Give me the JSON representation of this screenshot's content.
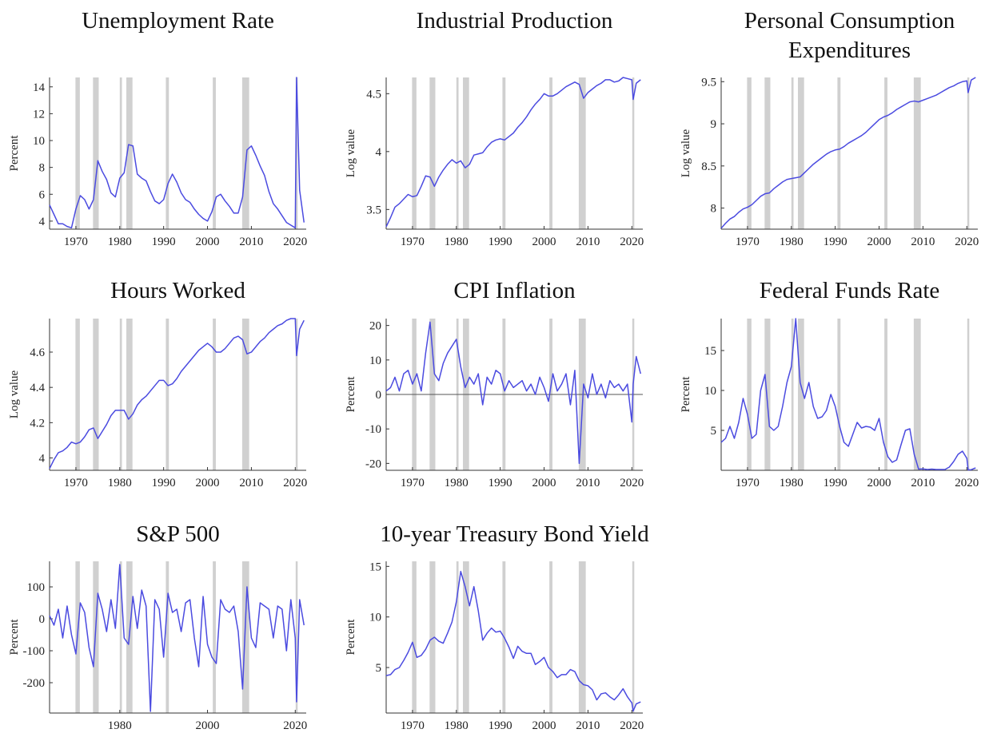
{
  "recessions": [
    [
      1969.9,
      1970.9
    ],
    [
      1973.9,
      1975.2
    ],
    [
      1980.0,
      1980.5
    ],
    [
      1981.5,
      1982.9
    ],
    [
      1990.5,
      1991.2
    ],
    [
      2001.2,
      2001.9
    ],
    [
      2007.9,
      2009.5
    ],
    [
      2020.1,
      2020.3
    ]
  ],
  "chart_data": [
    {
      "type": "line",
      "title": "Unemployment Rate",
      "y_label": "Percent",
      "color": "#4b4be0",
      "x": [
        1964,
        1965,
        1966,
        1967,
        1968,
        1969,
        1970,
        1971,
        1972,
        1973,
        1974,
        1975,
        1976,
        1977,
        1978,
        1979,
        1980,
        1981,
        1982,
        1983,
        1984,
        1985,
        1986,
        1987,
        1988,
        1989,
        1990,
        1991,
        1992,
        1993,
        1994,
        1995,
        1996,
        1997,
        1998,
        1999,
        2000,
        2001,
        2002,
        2003,
        2004,
        2005,
        2006,
        2007,
        2008,
        2009,
        2010,
        2011,
        2012,
        2013,
        2014,
        2015,
        2016,
        2017,
        2018,
        2019,
        2020,
        2020.3,
        2021,
        2022
      ],
      "values": [
        5.2,
        4.5,
        3.8,
        3.8,
        3.6,
        3.5,
        4.9,
        5.9,
        5.6,
        4.9,
        5.6,
        8.5,
        7.7,
        7.1,
        6.1,
        5.8,
        7.2,
        7.6,
        9.7,
        9.6,
        7.5,
        7.2,
        7.0,
        6.2,
        5.5,
        5.3,
        5.6,
        6.8,
        7.5,
        6.9,
        6.1,
        5.6,
        5.4,
        4.9,
        4.5,
        4.2,
        4.0,
        4.7,
        5.8,
        6.0,
        5.5,
        5.1,
        4.6,
        4.6,
        5.8,
        9.3,
        9.6,
        8.9,
        8.1,
        7.4,
        6.2,
        5.3,
        4.9,
        4.4,
        3.9,
        3.7,
        3.5,
        14.7,
        6.3,
        3.9
      ],
      "xlim": [
        1964,
        2022.5
      ],
      "xticks": [
        1970,
        1980,
        1990,
        2000,
        2010,
        2020
      ],
      "ylim": [
        3.4,
        14.7
      ],
      "yticks": [
        4,
        6,
        8,
        10,
        12,
        14
      ]
    },
    {
      "type": "line",
      "title": "Industrial Production",
      "y_label": "Log value",
      "color": "#4b4be0",
      "x": [
        1964,
        1965,
        1966,
        1967,
        1968,
        1969,
        1970,
        1971,
        1972,
        1973,
        1974,
        1975,
        1976,
        1977,
        1978,
        1979,
        1980,
        1981,
        1982,
        1983,
        1984,
        1985,
        1986,
        1987,
        1988,
        1989,
        1990,
        1991,
        1992,
        1993,
        1994,
        1995,
        1996,
        1997,
        1998,
        1999,
        2000,
        2001,
        2002,
        2003,
        2004,
        2005,
        2006,
        2007,
        2008,
        2009,
        2010,
        2011,
        2012,
        2013,
        2014,
        2015,
        2016,
        2017,
        2018,
        2019,
        2020,
        2020.3,
        2021,
        2022
      ],
      "values": [
        3.35,
        3.43,
        3.52,
        3.55,
        3.59,
        3.63,
        3.61,
        3.62,
        3.7,
        3.79,
        3.78,
        3.7,
        3.78,
        3.84,
        3.89,
        3.93,
        3.9,
        3.92,
        3.86,
        3.89,
        3.97,
        3.98,
        3.99,
        4.04,
        4.08,
        4.1,
        4.11,
        4.1,
        4.13,
        4.16,
        4.21,
        4.25,
        4.3,
        4.36,
        4.41,
        4.45,
        4.5,
        4.48,
        4.48,
        4.5,
        4.53,
        4.56,
        4.58,
        4.6,
        4.58,
        4.46,
        4.51,
        4.54,
        4.57,
        4.59,
        4.62,
        4.62,
        4.6,
        4.61,
        4.64,
        4.63,
        4.62,
        4.45,
        4.59,
        4.62
      ],
      "xlim": [
        1964,
        2022.5
      ],
      "xticks": [
        1970,
        1980,
        1990,
        2000,
        2010,
        2020
      ],
      "ylim": [
        3.33,
        4.64
      ],
      "yticks": [
        3.5,
        4,
        4.5
      ]
    },
    {
      "type": "line",
      "title": "Personal Consumption Expenditures",
      "y_label": "Log value",
      "color": "#4b4be0",
      "x": [
        1964,
        1965,
        1966,
        1967,
        1968,
        1969,
        1970,
        1971,
        1972,
        1973,
        1974,
        1975,
        1976,
        1977,
        1978,
        1979,
        1980,
        1981,
        1982,
        1983,
        1984,
        1985,
        1986,
        1987,
        1988,
        1989,
        1990,
        1991,
        1992,
        1993,
        1994,
        1995,
        1996,
        1997,
        1998,
        1999,
        2000,
        2001,
        2002,
        2003,
        2004,
        2005,
        2006,
        2007,
        2008,
        2009,
        2010,
        2011,
        2012,
        2013,
        2014,
        2015,
        2016,
        2017,
        2018,
        2019,
        2020,
        2020.3,
        2021,
        2022
      ],
      "values": [
        7.76,
        7.82,
        7.87,
        7.9,
        7.95,
        7.99,
        8.01,
        8.04,
        8.09,
        8.14,
        8.17,
        8.18,
        8.23,
        8.27,
        8.31,
        8.34,
        8.35,
        8.36,
        8.37,
        8.42,
        8.47,
        8.52,
        8.56,
        8.6,
        8.64,
        8.67,
        8.69,
        8.7,
        8.73,
        8.77,
        8.8,
        8.83,
        8.86,
        8.9,
        8.95,
        9.0,
        9.05,
        9.08,
        9.1,
        9.13,
        9.17,
        9.2,
        9.23,
        9.26,
        9.27,
        9.26,
        9.28,
        9.3,
        9.32,
        9.34,
        9.37,
        9.4,
        9.43,
        9.45,
        9.48,
        9.5,
        9.51,
        9.37,
        9.52,
        9.55
      ],
      "xlim": [
        1964,
        2022.5
      ],
      "xticks": [
        1970,
        1980,
        1990,
        2000,
        2010,
        2020
      ],
      "ylim": [
        7.75,
        9.55
      ],
      "yticks": [
        8,
        8.5,
        9,
        9.5
      ]
    },
    {
      "type": "line",
      "title": "Hours Worked",
      "y_label": "Log value",
      "color": "#4b4be0",
      "x": [
        1964,
        1965,
        1966,
        1967,
        1968,
        1969,
        1970,
        1971,
        1972,
        1973,
        1974,
        1975,
        1976,
        1977,
        1978,
        1979,
        1980,
        1981,
        1982,
        1983,
        1984,
        1985,
        1986,
        1987,
        1988,
        1989,
        1990,
        1991,
        1992,
        1993,
        1994,
        1995,
        1996,
        1997,
        1998,
        1999,
        2000,
        2001,
        2002,
        2003,
        2004,
        2005,
        2006,
        2007,
        2008,
        2009,
        2010,
        2011,
        2012,
        2013,
        2014,
        2015,
        2016,
        2017,
        2018,
        2019,
        2020,
        2020.3,
        2021,
        2022
      ],
      "values": [
        3.94,
        3.99,
        4.03,
        4.04,
        4.06,
        4.09,
        4.08,
        4.09,
        4.12,
        4.16,
        4.17,
        4.11,
        4.15,
        4.19,
        4.24,
        4.27,
        4.27,
        4.27,
        4.22,
        4.25,
        4.3,
        4.33,
        4.35,
        4.38,
        4.41,
        4.44,
        4.44,
        4.41,
        4.42,
        4.45,
        4.49,
        4.52,
        4.55,
        4.58,
        4.61,
        4.63,
        4.65,
        4.63,
        4.6,
        4.6,
        4.62,
        4.65,
        4.68,
        4.69,
        4.67,
        4.59,
        4.6,
        4.63,
        4.66,
        4.68,
        4.71,
        4.73,
        4.75,
        4.76,
        4.78,
        4.79,
        4.79,
        4.58,
        4.73,
        4.78
      ],
      "xlim": [
        1964,
        2022.5
      ],
      "xticks": [
        1970,
        1980,
        1990,
        2000,
        2010,
        2020
      ],
      "ylim": [
        3.93,
        4.79
      ],
      "yticks": [
        4,
        4.2,
        4.4,
        4.6
      ]
    },
    {
      "type": "line",
      "title": "CPI Inflation",
      "y_label": "Percent",
      "color": "#4b4be0",
      "zero_line": true,
      "x": [
        1964,
        1965,
        1966,
        1967,
        1968,
        1969,
        1970,
        1971,
        1972,
        1973,
        1974,
        1975,
        1976,
        1977,
        1978,
        1979,
        1980,
        1981,
        1982,
        1983,
        1984,
        1985,
        1986,
        1987,
        1988,
        1989,
        1990,
        1991,
        1992,
        1993,
        1994,
        1995,
        1996,
        1997,
        1998,
        1999,
        2000,
        2001,
        2002,
        2003,
        2004,
        2005,
        2006,
        2007,
        2008,
        2009,
        2010,
        2011,
        2012,
        2013,
        2014,
        2015,
        2016,
        2017,
        2018,
        2019,
        2020,
        2020.3,
        2021,
        2022
      ],
      "values": [
        1,
        2,
        5,
        1,
        6,
        7,
        3,
        6,
        1,
        12,
        21,
        6,
        4,
        9,
        12,
        14,
        16,
        8,
        2,
        5,
        3,
        6,
        -3,
        5,
        3,
        7,
        6,
        1,
        4,
        2,
        3,
        4,
        1,
        3,
        0,
        5,
        2,
        -2,
        6,
        1,
        3,
        6,
        -3,
        7,
        -20,
        3,
        -1,
        6,
        0,
        3,
        -1,
        4,
        2,
        3,
        1,
        3,
        -8,
        3,
        11,
        6
      ],
      "xlim": [
        1964,
        2022.5
      ],
      "xticks": [
        1970,
        1980,
        1990,
        2000,
        2010,
        2020
      ],
      "ylim": [
        -22,
        22
      ],
      "yticks": [
        -20,
        -10,
        0,
        10,
        20
      ]
    },
    {
      "type": "line",
      "title": "Federal Funds Rate",
      "y_label": "Percent",
      "color": "#4b4be0",
      "x": [
        1964,
        1965,
        1966,
        1967,
        1968,
        1969,
        1970,
        1971,
        1972,
        1973,
        1974,
        1975,
        1976,
        1977,
        1978,
        1979,
        1980,
        1981,
        1982,
        1983,
        1984,
        1985,
        1986,
        1987,
        1988,
        1989,
        1990,
        1991,
        1992,
        1993,
        1994,
        1995,
        1996,
        1997,
        1998,
        1999,
        2000,
        2001,
        2002,
        2003,
        2004,
        2005,
        2006,
        2007,
        2008,
        2009,
        2010,
        2011,
        2012,
        2013,
        2014,
        2015,
        2016,
        2017,
        2018,
        2019,
        2020,
        2020.3,
        2021,
        2022
      ],
      "values": [
        3.5,
        4,
        5.5,
        4,
        6,
        9,
        7,
        4,
        4.5,
        10,
        12,
        5.5,
        5,
        5.5,
        8,
        11,
        13,
        19,
        11,
        9,
        11,
        8,
        6.5,
        6.7,
        7.5,
        9.5,
        8,
        5.5,
        3.5,
        3,
        4.5,
        6,
        5.3,
        5.5,
        5.4,
        5,
        6.5,
        3.5,
        1.7,
        1,
        1.3,
        3.2,
        5,
        5.2,
        2,
        0.15,
        0.18,
        0.1,
        0.15,
        0.1,
        0.1,
        0.1,
        0.4,
        1.1,
        2,
        2.4,
        1.5,
        0.05,
        0.08,
        0.3
      ],
      "xlim": [
        1964,
        2022.5
      ],
      "xticks": [
        1970,
        1980,
        1990,
        2000,
        2010,
        2020
      ],
      "ylim": [
        0,
        19
      ],
      "yticks": [
        5,
        10,
        15
      ]
    },
    {
      "type": "line",
      "title": "S&P 500",
      "y_label": "Percent",
      "color": "#4b4be0",
      "x": [
        1964,
        1965,
        1966,
        1967,
        1968,
        1969,
        1970,
        1971,
        1972,
        1973,
        1974,
        1975,
        1976,
        1977,
        1978,
        1979,
        1980,
        1981,
        1982,
        1983,
        1984,
        1985,
        1986,
        1987,
        1988,
        1989,
        1990,
        1991,
        1992,
        1993,
        1994,
        1995,
        1996,
        1997,
        1998,
        1999,
        2000,
        2001,
        2002,
        2003,
        2004,
        2005,
        2006,
        2007,
        2008,
        2009,
        2010,
        2011,
        2012,
        2013,
        2014,
        2015,
        2016,
        2017,
        2018,
        2019,
        2020,
        2020.3,
        2021,
        2022
      ],
      "values": [
        10,
        -20,
        30,
        -60,
        40,
        -50,
        -110,
        50,
        20,
        -90,
        -150,
        80,
        30,
        -40,
        60,
        -30,
        170,
        -60,
        -80,
        70,
        -30,
        90,
        40,
        -290,
        60,
        30,
        -120,
        80,
        20,
        30,
        -40,
        50,
        60,
        -60,
        -150,
        70,
        -80,
        -120,
        -140,
        60,
        30,
        20,
        40,
        -40,
        -220,
        100,
        -60,
        -90,
        50,
        40,
        30,
        -60,
        40,
        30,
        -100,
        60,
        -60,
        -260,
        60,
        -20
      ],
      "xlim": [
        1964,
        2022.5
      ],
      "xticks": [
        1980,
        2000,
        2020
      ],
      "ylim": [
        -295,
        180
      ],
      "yticks": [
        -200,
        -100,
        0,
        100
      ]
    },
    {
      "type": "line",
      "title": "10-year Treasury Bond Yield",
      "y_label": "Percent",
      "color": "#4b4be0",
      "x": [
        1964,
        1965,
        1966,
        1967,
        1968,
        1969,
        1970,
        1971,
        1972,
        1973,
        1974,
        1975,
        1976,
        1977,
        1978,
        1979,
        1980,
        1981,
        1982,
        1983,
        1984,
        1985,
        1986,
        1987,
        1988,
        1989,
        1990,
        1991,
        1992,
        1993,
        1994,
        1995,
        1996,
        1997,
        1998,
        1999,
        2000,
        2001,
        2002,
        2003,
        2004,
        2005,
        2006,
        2007,
        2008,
        2009,
        2010,
        2011,
        2012,
        2013,
        2014,
        2015,
        2016,
        2017,
        2018,
        2019,
        2020,
        2020.3,
        2021,
        2022
      ],
      "values": [
        4.2,
        4.3,
        4.8,
        5,
        5.7,
        6.5,
        7.5,
        6,
        6.2,
        6.8,
        7.7,
        8,
        7.6,
        7.4,
        8.4,
        9.5,
        11.5,
        14.5,
        13,
        11.1,
        13,
        10.6,
        7.7,
        8.4,
        8.9,
        8.5,
        8.6,
        7.9,
        7,
        5.9,
        7.1,
        6.6,
        6.4,
        6.4,
        5.3,
        5.6,
        6.0,
        5,
        4.6,
        4,
        4.3,
        4.3,
        4.8,
        4.6,
        3.7,
        3.3,
        3.2,
        2.8,
        1.8,
        2.4,
        2.5,
        2.1,
        1.8,
        2.3,
        2.9,
        2.1,
        1.5,
        0.7,
        1.4,
        1.6
      ],
      "xlim": [
        1964,
        2022.5
      ],
      "xticks": [
        1970,
        1980,
        1990,
        2000,
        2010,
        2020
      ],
      "ylim": [
        0.5,
        15.5
      ],
      "yticks": [
        5,
        10,
        15
      ]
    }
  ]
}
